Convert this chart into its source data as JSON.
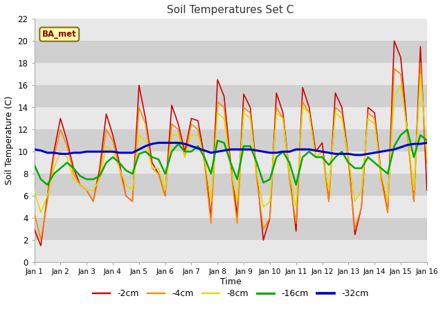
{
  "title": "Soil Temperatures Set C",
  "xlabel": "Time",
  "ylabel": "Soil Temperature (C)",
  "ylim": [
    0,
    22
  ],
  "xlim": [
    0,
    15
  ],
  "xtick_labels": [
    "Jan 1",
    "Jan 2",
    "Jan 3",
    "Jan 4",
    "Jan 5",
    "Jan 6",
    "Jan 7",
    "Jan 8",
    "Jan 9",
    "Jan 10",
    "Jan 11",
    "Jan 12",
    "Jan 13",
    "Jan 14",
    "Jan 15",
    "Jan 16"
  ],
  "annotation": "BA_met",
  "fig_bg_color": "#ffffff",
  "plot_bg_color": "#d8d8d8",
  "band_color_light": "#e8e8e8",
  "band_color_dark": "#d0d0d0",
  "legend": [
    "-2cm",
    "-4cm",
    "-8cm",
    "-16cm",
    "-32cm"
  ],
  "line_colors": [
    "#cc0000",
    "#ff8800",
    "#dddd00",
    "#00aa00",
    "#0000cc"
  ],
  "line_widths": [
    1.2,
    1.2,
    1.2,
    1.8,
    2.2
  ],
  "x": [
    0,
    0.25,
    0.5,
    0.75,
    1.0,
    1.25,
    1.5,
    1.75,
    2.0,
    2.25,
    2.5,
    2.75,
    3.0,
    3.25,
    3.5,
    3.75,
    4.0,
    4.25,
    4.5,
    4.75,
    5.0,
    5.25,
    5.5,
    5.75,
    6.0,
    6.25,
    6.5,
    6.75,
    7.0,
    7.25,
    7.5,
    7.75,
    8.0,
    8.25,
    8.5,
    8.75,
    9.0,
    9.25,
    9.5,
    9.75,
    10.0,
    10.25,
    10.5,
    10.75,
    11.0,
    11.25,
    11.5,
    11.75,
    12.0,
    12.25,
    12.5,
    12.75,
    13.0,
    13.25,
    13.5,
    13.75,
    14.0,
    14.25,
    14.5,
    14.75,
    15.0
  ],
  "y_2cm": [
    3.0,
    1.5,
    6.0,
    10.0,
    13.0,
    11.0,
    8.5,
    7.0,
    6.5,
    5.5,
    8.5,
    13.4,
    11.5,
    9.0,
    6.0,
    5.5,
    16.0,
    13.0,
    9.0,
    8.0,
    6.0,
    14.2,
    12.5,
    10.0,
    13.0,
    12.8,
    9.5,
    4.0,
    16.5,
    15.0,
    9.0,
    4.2,
    15.2,
    14.0,
    8.0,
    2.0,
    4.0,
    15.3,
    13.5,
    8.0,
    2.8,
    15.8,
    14.0,
    10.0,
    10.8,
    5.5,
    15.3,
    14.0,
    9.5,
    2.5,
    5.0,
    14.0,
    13.5,
    8.0,
    4.5,
    20.0,
    18.5,
    12.0,
    5.5,
    19.5,
    6.5
  ],
  "y_4cm": [
    4.5,
    2.0,
    5.5,
    9.5,
    12.0,
    10.5,
    8.0,
    7.0,
    6.5,
    5.5,
    8.0,
    12.0,
    11.0,
    8.5,
    6.0,
    5.5,
    14.0,
    12.5,
    8.5,
    8.0,
    6.0,
    12.5,
    12.0,
    9.5,
    12.5,
    12.0,
    9.0,
    3.5,
    14.5,
    14.0,
    8.5,
    3.5,
    14.0,
    13.5,
    7.5,
    3.0,
    4.0,
    14.0,
    13.0,
    7.5,
    3.5,
    14.5,
    13.5,
    9.5,
    10.0,
    5.5,
    14.0,
    13.5,
    9.0,
    3.0,
    5.0,
    13.5,
    13.0,
    7.5,
    4.5,
    17.5,
    17.0,
    11.5,
    5.5,
    18.0,
    9.0
  ],
  "y_8cm": [
    6.5,
    4.5,
    6.0,
    8.5,
    10.0,
    9.5,
    7.5,
    7.0,
    6.5,
    6.5,
    7.5,
    10.5,
    10.0,
    8.5,
    7.0,
    6.5,
    11.5,
    11.0,
    8.5,
    8.5,
    6.5,
    11.5,
    11.5,
    9.5,
    11.5,
    11.5,
    9.5,
    5.5,
    13.5,
    13.0,
    8.5,
    5.5,
    13.5,
    13.0,
    8.0,
    5.0,
    5.5,
    13.5,
    13.0,
    8.0,
    5.0,
    14.0,
    13.5,
    9.5,
    10.0,
    6.5,
    13.5,
    13.0,
    9.5,
    5.5,
    6.5,
    13.0,
    12.5,
    8.0,
    5.5,
    15.0,
    16.0,
    12.0,
    6.5,
    17.0,
    9.5
  ],
  "y_16cm": [
    8.8,
    7.5,
    7.0,
    8.0,
    8.5,
    9.0,
    8.5,
    7.8,
    7.5,
    7.5,
    7.8,
    9.0,
    9.5,
    9.0,
    8.3,
    8.0,
    9.8,
    10.0,
    9.5,
    9.3,
    8.0,
    10.0,
    10.7,
    10.0,
    10.0,
    10.5,
    9.5,
    8.0,
    11.0,
    10.8,
    9.0,
    7.5,
    10.5,
    10.5,
    9.0,
    7.2,
    7.5,
    9.5,
    10.0,
    9.0,
    7.0,
    9.5,
    10.0,
    9.5,
    9.5,
    8.8,
    9.5,
    10.0,
    9.0,
    8.5,
    8.5,
    9.5,
    9.0,
    8.5,
    8.0,
    10.5,
    11.5,
    12.0,
    9.5,
    11.5,
    11.0
  ],
  "y_32cm": [
    10.2,
    10.1,
    9.9,
    9.9,
    9.8,
    9.8,
    9.9,
    9.9,
    10.0,
    10.0,
    10.0,
    10.0,
    10.0,
    9.9,
    9.9,
    9.9,
    10.2,
    10.5,
    10.7,
    10.8,
    10.8,
    10.8,
    10.8,
    10.7,
    10.5,
    10.3,
    10.1,
    9.9,
    10.0,
    10.1,
    10.2,
    10.2,
    10.2,
    10.2,
    10.1,
    10.0,
    9.9,
    9.9,
    10.0,
    10.0,
    10.2,
    10.2,
    10.2,
    10.1,
    10.0,
    9.9,
    9.8,
    9.8,
    9.8,
    9.7,
    9.7,
    9.8,
    9.9,
    10.0,
    10.1,
    10.2,
    10.4,
    10.6,
    10.7,
    10.7,
    10.8
  ]
}
